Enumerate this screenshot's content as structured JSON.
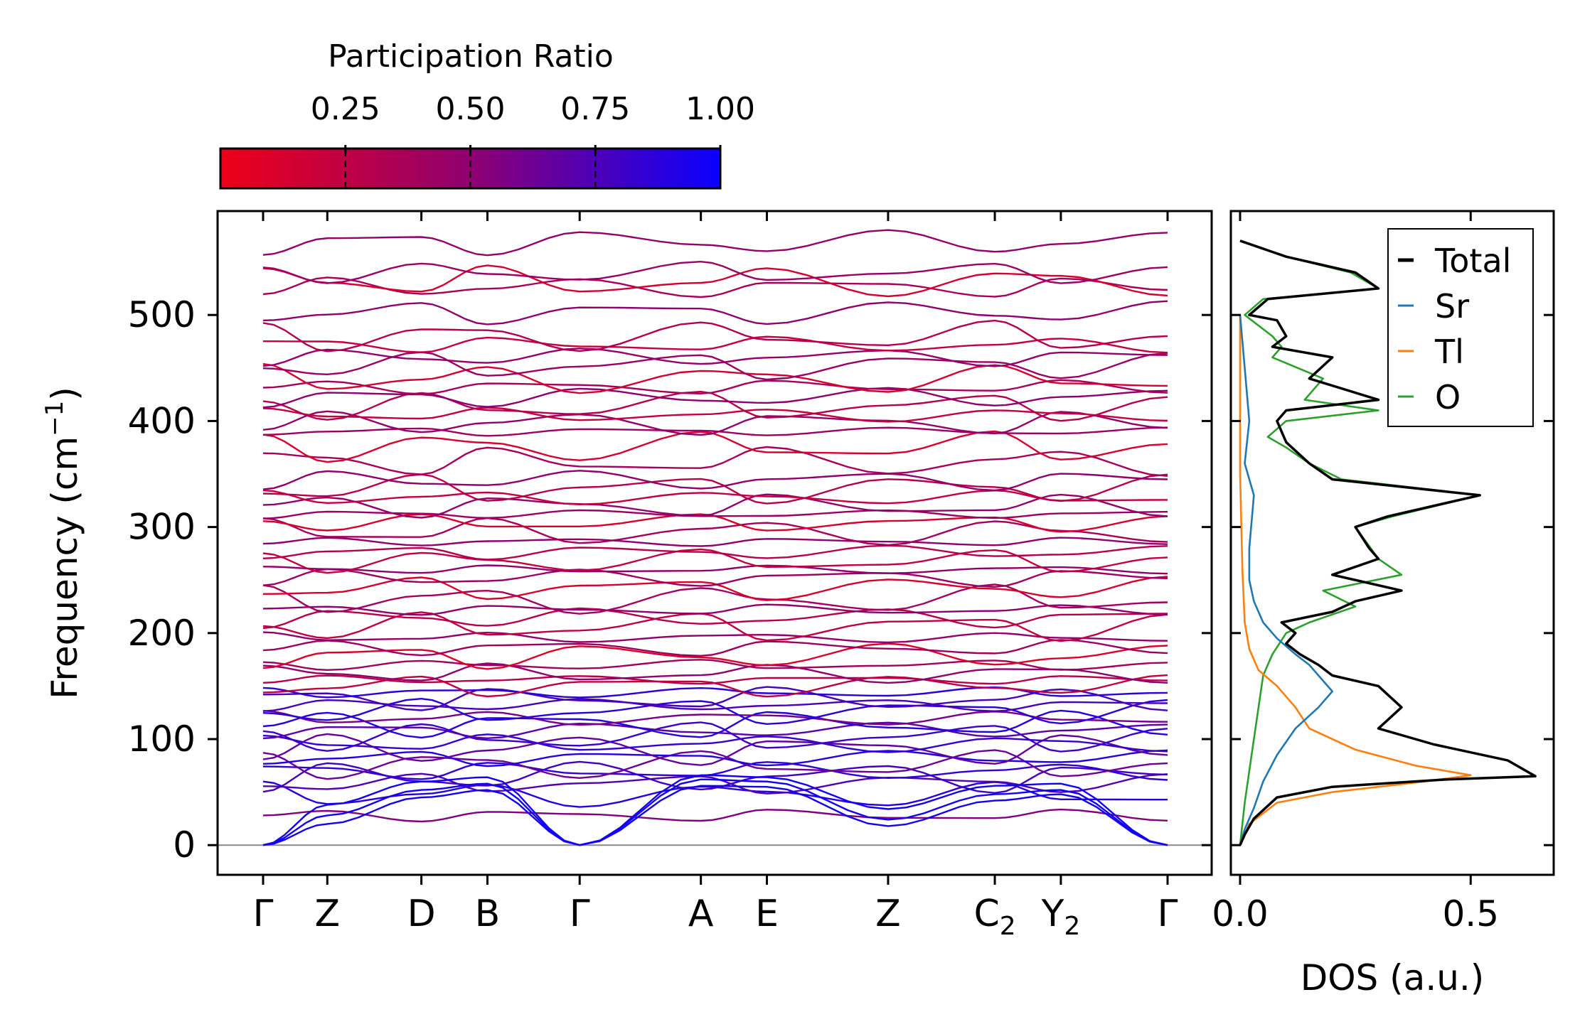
{
  "chart_data": [
    {
      "type": "line",
      "subtype": "phonon-band-structure",
      "ylabel_main": "Frequency (cm",
      "ylabel_sup": "−1",
      "ylabel_end": ")",
      "ylim": [
        -28,
        598
      ],
      "yticks": [
        0,
        100,
        200,
        300,
        400,
        500
      ],
      "ytick_labels": [
        "0",
        "100",
        "200",
        "300",
        "400",
        "500"
      ],
      "kpoints": [
        {
          "main": "Γ",
          "sub": "",
          "pos": 0.0
        },
        {
          "main": "Z",
          "sub": "",
          "pos": 0.071
        },
        {
          "main": "D",
          "sub": "",
          "pos": 0.175
        },
        {
          "main": "B",
          "sub": "",
          "pos": 0.248
        },
        {
          "main": "Γ",
          "sub": "",
          "pos": 0.35
        },
        {
          "main": "A",
          "sub": "",
          "pos": 0.484
        },
        {
          "main": "E",
          "sub": "",
          "pos": 0.557
        },
        {
          "main": "Z",
          "sub": "",
          "pos": 0.691
        },
        {
          "main": "C",
          "sub": "2",
          "pos": 0.809
        },
        {
          "main": "Y",
          "sub": "2",
          "pos": 0.882
        },
        {
          "main": "Γ",
          "sub": "",
          "pos": 1.0
        }
      ],
      "colorbar": {
        "title": "Participation Ratio",
        "range": [
          0.0,
          1.0
        ],
        "ticks": [
          0.25,
          0.5,
          0.75,
          1.0
        ],
        "tick_labels": [
          "0.25",
          "0.50",
          "0.75",
          "1.00"
        ],
        "color_low": "#ee0018",
        "color_mid": "#8f0070",
        "color_high": "#0a00ff"
      },
      "acoustic_branches": [
        {
          "values": [
            0,
            28,
            52,
            58,
            0,
            62,
            60,
            24,
            48,
            52,
            0
          ]
        },
        {
          "values": [
            0,
            20,
            45,
            52,
            0,
            56,
            55,
            18,
            42,
            48,
            0
          ]
        },
        {
          "values": [
            0,
            38,
            60,
            64,
            0,
            66,
            64,
            34,
            56,
            58,
            0
          ]
        }
      ],
      "optical_branch_levels": [
        28,
        48,
        58,
        64,
        70,
        76,
        82,
        90,
        96,
        102,
        108,
        114,
        120,
        126,
        132,
        138,
        144,
        150,
        156,
        162,
        170,
        178,
        186,
        196,
        206,
        214,
        222,
        232,
        242,
        252,
        260,
        268,
        276,
        286,
        296,
        304,
        312,
        320,
        328,
        336,
        344,
        362,
        376,
        390,
        398,
        406,
        414,
        422,
        432,
        440,
        452,
        460,
        472,
        480,
        502,
        526,
        532,
        540,
        568
      ],
      "notes": "Dense set of optical branches; colours encode participation ratio (red≈0.1, blue≈1.0)."
    },
    {
      "type": "line",
      "subtype": "density-of-states",
      "xlabel": "DOS (a.u.)",
      "xlim": [
        -0.02,
        0.68
      ],
      "xticks": [
        0.0,
        0.5
      ],
      "xtick_labels": [
        "0.0",
        "0.5"
      ],
      "ylim": [
        -28,
        598
      ],
      "series": [
        {
          "name": "Total",
          "color": "#000000",
          "x": [
            0,
            0.01,
            0.03,
            0.08,
            0.2,
            0.45,
            0.64,
            0.58,
            0.42,
            0.3,
            0.35,
            0.3,
            0.2,
            0.17,
            0.13,
            0.1,
            0.12,
            0.09,
            0.2,
            0.25,
            0.35,
            0.2,
            0.3,
            0.28,
            0.25,
            0.32,
            0.52,
            0.2,
            0.15,
            0.1,
            0.08,
            0.1,
            0.3,
            0.15,
            0.2,
            0.07,
            0.1,
            0.08,
            0.02,
            0.06,
            0.3,
            0.25,
            0.1,
            0.0
          ],
          "y": [
            0,
            10,
            25,
            45,
            55,
            62,
            65,
            80,
            95,
            110,
            130,
            150,
            160,
            170,
            180,
            190,
            200,
            210,
            220,
            230,
            240,
            255,
            270,
            280,
            300,
            310,
            330,
            345,
            360,
            380,
            400,
            410,
            420,
            440,
            460,
            470,
            480,
            495,
            500,
            515,
            525,
            540,
            555,
            570
          ]
        },
        {
          "name": "Sr",
          "color": "#1f77b4",
          "x": [
            0,
            0.01,
            0.03,
            0.05,
            0.08,
            0.12,
            0.17,
            0.2,
            0.15,
            0.12,
            0.08,
            0.05,
            0.03,
            0.02,
            0.02,
            0.03,
            0.01,
            0.02,
            0.01,
            0.0
          ],
          "y": [
            0,
            15,
            35,
            60,
            85,
            110,
            130,
            145,
            170,
            180,
            195,
            210,
            230,
            250,
            280,
            330,
            360,
            400,
            450,
            500
          ]
        },
        {
          "name": "Tl",
          "color": "#ff7f0e",
          "x": [
            0,
            0.02,
            0.08,
            0.2,
            0.4,
            0.5,
            0.38,
            0.25,
            0.15,
            0.12,
            0.08,
            0.04,
            0.02,
            0.01,
            0.005,
            0.0,
            0.0
          ],
          "y": [
            0,
            20,
            40,
            50,
            60,
            66,
            75,
            90,
            110,
            130,
            150,
            165,
            185,
            210,
            260,
            350,
            500
          ]
        },
        {
          "name": "O",
          "color": "#2ca02c",
          "x": [
            0,
            0.005,
            0.01,
            0.02,
            0.03,
            0.04,
            0.05,
            0.07,
            0.1,
            0.15,
            0.25,
            0.18,
            0.35,
            0.3,
            0.25,
            0.33,
            0.52,
            0.22,
            0.15,
            0.1,
            0.06,
            0.1,
            0.3,
            0.14,
            0.18,
            0.07,
            0.09,
            0.07,
            0.01,
            0.05,
            0.3,
            0.24,
            0.1,
            0.0
          ],
          "y": [
            0,
            20,
            40,
            70,
            100,
            130,
            160,
            180,
            200,
            210,
            225,
            240,
            255,
            270,
            300,
            310,
            330,
            345,
            360,
            375,
            385,
            400,
            410,
            420,
            440,
            460,
            470,
            480,
            500,
            515,
            525,
            540,
            555,
            570
          ]
        }
      ],
      "legend": {
        "placement": "top-right",
        "entries": [
          "Total",
          "Sr",
          "Tl",
          "O"
        ]
      }
    }
  ]
}
